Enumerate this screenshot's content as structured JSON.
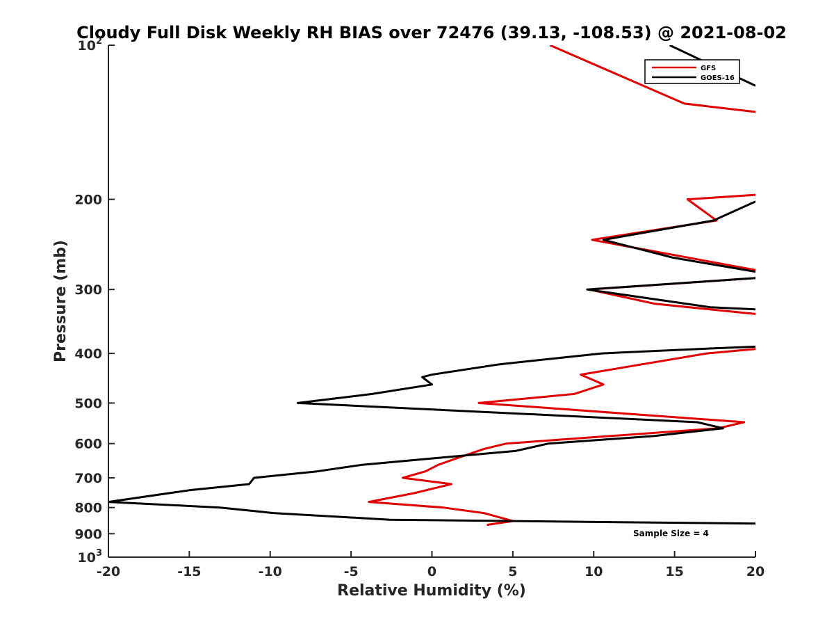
{
  "chart_data": {
    "type": "line",
    "title": "Cloudy Full Disk Weekly RH BIAS over 72476 (39.13, -108.53) @ 2021-08-02",
    "xlabel": "Relative Humidity (%)",
    "ylabel": "Pressure (mb)",
    "xlim": [
      -20,
      20
    ],
    "ylim": [
      100,
      1000
    ],
    "y_scale": "log",
    "y_reversed": true,
    "x_ticks": [
      "-20",
      "-15",
      "-10",
      "-5",
      "0",
      "5",
      "10",
      "15",
      "20"
    ],
    "y_ticks": [
      {
        "value": 100,
        "base": "10",
        "exp": "2"
      },
      {
        "value": 200,
        "label": "200"
      },
      {
        "value": 300,
        "label": "300"
      },
      {
        "value": 400,
        "label": "400"
      },
      {
        "value": 500,
        "label": "500"
      },
      {
        "value": 600,
        "label": "600"
      },
      {
        "value": 700,
        "label": "700"
      },
      {
        "value": 800,
        "label": "800"
      },
      {
        "value": 900,
        "label": "900"
      },
      {
        "value": 1000,
        "base": "10",
        "exp": "3"
      }
    ],
    "legend_position": "top-right",
    "grid": false,
    "annotation": "Sample Size = 4",
    "series": [
      {
        "name": "GFS",
        "color": "#e00000",
        "points": [
          [
            7.3,
            100
          ],
          [
            15.6,
            130
          ],
          [
            20,
            135
          ],
          [
            null,
            null
          ],
          [
            20,
            196
          ],
          [
            15.8,
            200
          ],
          [
            17.6,
            220
          ],
          [
            9.9,
            240
          ],
          [
            20,
            275
          ],
          [
            null,
            null
          ],
          [
            20,
            285
          ],
          [
            9.7,
            300
          ],
          [
            13.8,
            320
          ],
          [
            20,
            335
          ],
          [
            null,
            null
          ],
          [
            20,
            392
          ],
          [
            17,
            400
          ],
          [
            9.2,
            440
          ],
          [
            10.6,
            460
          ],
          [
            8.8,
            480
          ],
          [
            2.9,
            500
          ],
          [
            19.3,
            545
          ],
          [
            17.7,
            560
          ],
          [
            11,
            580
          ],
          [
            4.6,
            600
          ],
          [
            3.2,
            615
          ],
          [
            1.6,
            640
          ],
          [
            0.4,
            660
          ],
          [
            -0.4,
            680
          ],
          [
            -1.8,
            700
          ],
          [
            1.2,
            720
          ],
          [
            -1.1,
            750
          ],
          [
            -3.9,
            780
          ],
          [
            0.7,
            800
          ],
          [
            3.2,
            820
          ],
          [
            5,
            850
          ],
          [
            3.4,
            865
          ]
        ]
      },
      {
        "name": "GOES-16",
        "color": "#000000",
        "points": [
          [
            14.7,
            100
          ],
          [
            20,
            120
          ],
          [
            null,
            null
          ],
          [
            20,
            202
          ],
          [
            17.4,
            220
          ],
          [
            10.6,
            240
          ],
          [
            14.9,
            260
          ],
          [
            20,
            277
          ],
          [
            null,
            null
          ],
          [
            20,
            285
          ],
          [
            9.6,
            300
          ],
          [
            17.2,
            325
          ],
          [
            20,
            328
          ],
          [
            null,
            null
          ],
          [
            20,
            388
          ],
          [
            16.5,
            392
          ],
          [
            10.5,
            400
          ],
          [
            4.2,
            420
          ],
          [
            0,
            440
          ],
          [
            -0.6,
            445
          ],
          [
            0,
            460
          ],
          [
            -3.7,
            480
          ],
          [
            -8.3,
            500
          ],
          [
            16.4,
            545
          ],
          [
            18,
            560
          ],
          [
            13.7,
            580
          ],
          [
            7.2,
            600
          ],
          [
            5.2,
            620
          ],
          [
            0.4,
            640
          ],
          [
            -4.3,
            660
          ],
          [
            -7.1,
            680
          ],
          [
            -11,
            700
          ],
          [
            -11.3,
            720
          ],
          [
            -15,
            740
          ],
          [
            -20,
            780
          ],
          [
            -13.1,
            800
          ],
          [
            -9.8,
            820
          ],
          [
            -2.6,
            845
          ],
          [
            20,
            860
          ]
        ]
      }
    ]
  }
}
